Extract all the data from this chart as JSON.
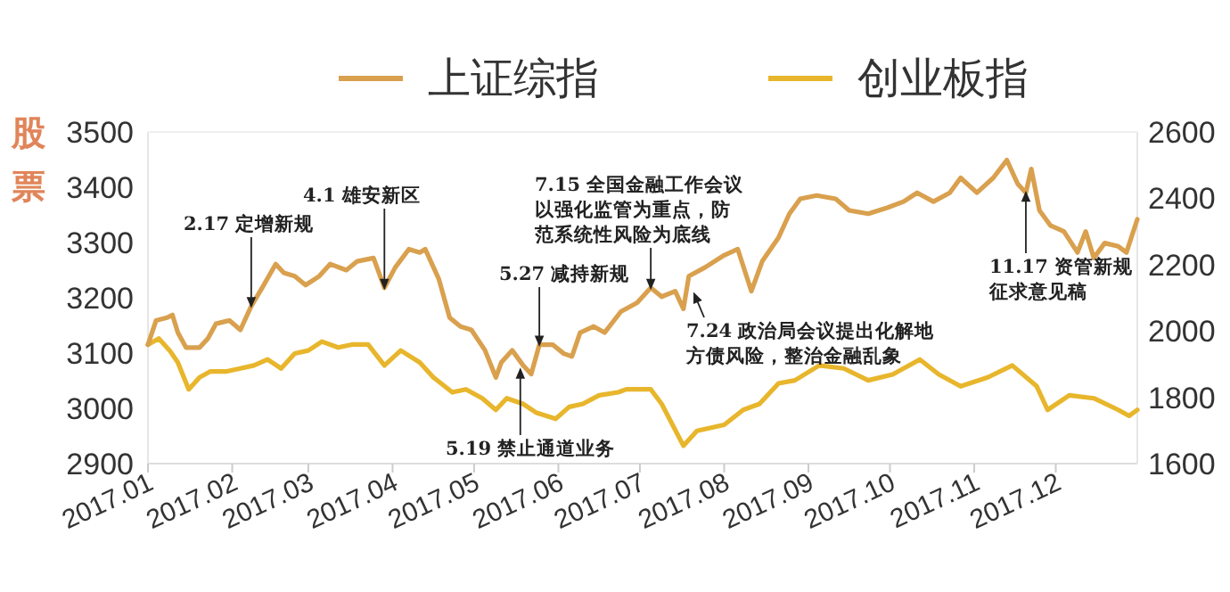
{
  "chart_data": {
    "type": "line",
    "ylabel": "股票",
    "legend": "top",
    "xlim": [
      "2017-01-01",
      "2017-12-31"
    ],
    "xticks": [
      {
        "value": "2017-01",
        "label": "2017.01"
      },
      {
        "value": "2017-02",
        "label": "2017.02"
      },
      {
        "value": "2017-03",
        "label": "2017.03"
      },
      {
        "value": "2017-04",
        "label": "2017.04"
      },
      {
        "value": "2017-05",
        "label": "2017.05"
      },
      {
        "value": "2017-06",
        "label": "2017.06"
      },
      {
        "value": "2017-07",
        "label": "2017.07"
      },
      {
        "value": "2017-08",
        "label": "2017.08"
      },
      {
        "value": "2017-09",
        "label": "2017.09"
      },
      {
        "value": "2017-10",
        "label": "2017.10"
      },
      {
        "value": "2017-11",
        "label": "2017.11"
      },
      {
        "value": "2017-12",
        "label": "2017.12"
      }
    ],
    "ylim": [
      2900,
      3500
    ],
    "yticks": [
      2900,
      3000,
      3100,
      3200,
      3300,
      3400,
      3500
    ],
    "y2lim": [
      1600,
      2600
    ],
    "y2ticks": [
      1600,
      1800,
      2000,
      2200,
      2400,
      2600
    ],
    "series": [
      {
        "name": "上证综指",
        "color": "#d9a04e",
        "x": [
          "2017-01-01",
          "2017-01-04",
          "2017-01-08",
          "2017-01-10",
          "2017-01-12",
          "2017-01-15",
          "2017-01-20",
          "2017-01-23",
          "2017-01-26",
          "2017-01-31",
          "2017-02-04",
          "2017-02-08",
          "2017-02-12",
          "2017-02-17",
          "2017-02-20",
          "2017-02-24",
          "2017-02-28",
          "2017-03-05",
          "2017-03-09",
          "2017-03-15",
          "2017-03-19",
          "2017-03-25",
          "2017-03-29",
          "2017-04-02",
          "2017-04-07",
          "2017-04-11",
          "2017-04-13",
          "2017-04-18",
          "2017-04-22",
          "2017-04-26",
          "2017-04-30",
          "2017-05-05",
          "2017-05-09",
          "2017-05-11",
          "2017-05-15",
          "2017-05-19",
          "2017-05-22",
          "2017-05-25",
          "2017-05-30",
          "2017-06-03",
          "2017-06-06",
          "2017-06-09",
          "2017-06-14",
          "2017-06-18",
          "2017-06-24",
          "2017-06-30",
          "2017-07-05",
          "2017-07-09",
          "2017-07-14",
          "2017-07-17",
          "2017-07-19",
          "2017-07-25",
          "2017-08-01",
          "2017-08-06",
          "2017-08-11",
          "2017-08-15",
          "2017-08-21",
          "2017-08-25",
          "2017-08-29",
          "2017-09-04",
          "2017-09-11",
          "2017-09-16",
          "2017-09-23",
          "2017-09-30",
          "2017-10-06",
          "2017-10-11",
          "2017-10-17",
          "2017-10-23",
          "2017-10-27",
          "2017-11-02",
          "2017-11-08",
          "2017-11-13",
          "2017-11-17",
          "2017-11-20",
          "2017-11-22",
          "2017-11-25",
          "2017-11-29",
          "2017-12-04",
          "2017-12-09",
          "2017-12-12",
          "2017-12-15",
          "2017-12-19",
          "2017-12-24",
          "2017-12-27",
          "2017-12-31"
        ],
        "values": [
          3115,
          3159,
          3164,
          3169,
          3137,
          3110,
          3110,
          3126,
          3153,
          3159,
          3142,
          3185,
          3218,
          3261,
          3245,
          3239,
          3223,
          3239,
          3261,
          3250,
          3266,
          3272,
          3218,
          3255,
          3288,
          3282,
          3288,
          3234,
          3164,
          3148,
          3142,
          3105,
          3056,
          3083,
          3105,
          3078,
          3062,
          3115,
          3115,
          3099,
          3094,
          3137,
          3148,
          3137,
          3175,
          3191,
          3218,
          3202,
          3212,
          3180,
          3239,
          3255,
          3277,
          3288,
          3212,
          3266,
          3309,
          3352,
          3379,
          3385,
          3379,
          3358,
          3352,
          3363,
          3374,
          3390,
          3374,
          3390,
          3417,
          3390,
          3417,
          3449,
          3406,
          3390,
          3433,
          3358,
          3331,
          3320,
          3282,
          3320,
          3272,
          3299,
          3293,
          3282,
          3342
        ]
      },
      {
        "name": "创业板指",
        "color": "#e8b62c",
        "axis": "y2",
        "x": [
          "2017-01-01",
          "2017-01-05",
          "2017-01-09",
          "2017-01-12",
          "2017-01-16",
          "2017-01-20",
          "2017-01-24",
          "2017-01-30",
          "2017-02-04",
          "2017-02-09",
          "2017-02-14",
          "2017-02-19",
          "2017-02-24",
          "2017-03-01",
          "2017-03-06",
          "2017-03-12",
          "2017-03-17",
          "2017-03-23",
          "2017-03-29",
          "2017-04-04",
          "2017-04-11",
          "2017-04-16",
          "2017-04-23",
          "2017-04-28",
          "2017-05-04",
          "2017-05-09",
          "2017-05-13",
          "2017-05-19",
          "2017-05-24",
          "2017-05-31",
          "2017-06-05",
          "2017-06-10",
          "2017-06-16",
          "2017-06-23",
          "2017-06-26",
          "2017-07-05",
          "2017-07-09",
          "2017-07-17",
          "2017-07-22",
          "2017-08-01",
          "2017-08-08",
          "2017-08-14",
          "2017-08-21",
          "2017-08-27",
          "2017-09-05",
          "2017-09-14",
          "2017-09-23",
          "2017-10-02",
          "2017-10-12",
          "2017-10-19",
          "2017-10-27",
          "2017-11-06",
          "2017-11-15",
          "2017-11-24",
          "2017-11-28",
          "2017-12-06",
          "2017-12-15",
          "2017-12-24",
          "2017-12-28",
          "2017-12-31"
        ],
        "values": [
          1959,
          1977,
          1941,
          1905,
          1824,
          1860,
          1878,
          1878,
          1887,
          1896,
          1914,
          1887,
          1932,
          1941,
          1968,
          1950,
          1959,
          1959,
          1896,
          1941,
          1905,
          1860,
          1815,
          1824,
          1797,
          1762,
          1797,
          1780,
          1753,
          1735,
          1771,
          1780,
          1806,
          1815,
          1824,
          1824,
          1780,
          1654,
          1699,
          1717,
          1762,
          1780,
          1842,
          1851,
          1896,
          1887,
          1851,
          1869,
          1914,
          1869,
          1833,
          1860,
          1896,
          1833,
          1762,
          1806,
          1797,
          1762,
          1744,
          1762
        ]
      }
    ],
    "annotations": [
      {
        "text": "2.17 定增新规",
        "x": "2017-02-08",
        "y": 3185
      },
      {
        "text": "4.1 雄安新区",
        "x": "2017-03-29",
        "y": 3218
      },
      {
        "text": "5.19 禁止通道业务",
        "x": "2017-05-18",
        "y": 3070
      },
      {
        "text": "5.27 减持新规",
        "x": "2017-05-25",
        "y": 3115
      },
      {
        "text": "7.15 全国金融工作会议以强化监管为重点，防范系统性风险为底线",
        "x": "2017-07-05",
        "y": 3218
      },
      {
        "text": "7.24 政治局会议提出化解地方债风险，整治金融乱象",
        "x": "2017-07-21",
        "y": 3207
      },
      {
        "text": "11.17 资管新规征求意见稿",
        "x": "2017-11-20",
        "y": 3390
      }
    ]
  }
}
